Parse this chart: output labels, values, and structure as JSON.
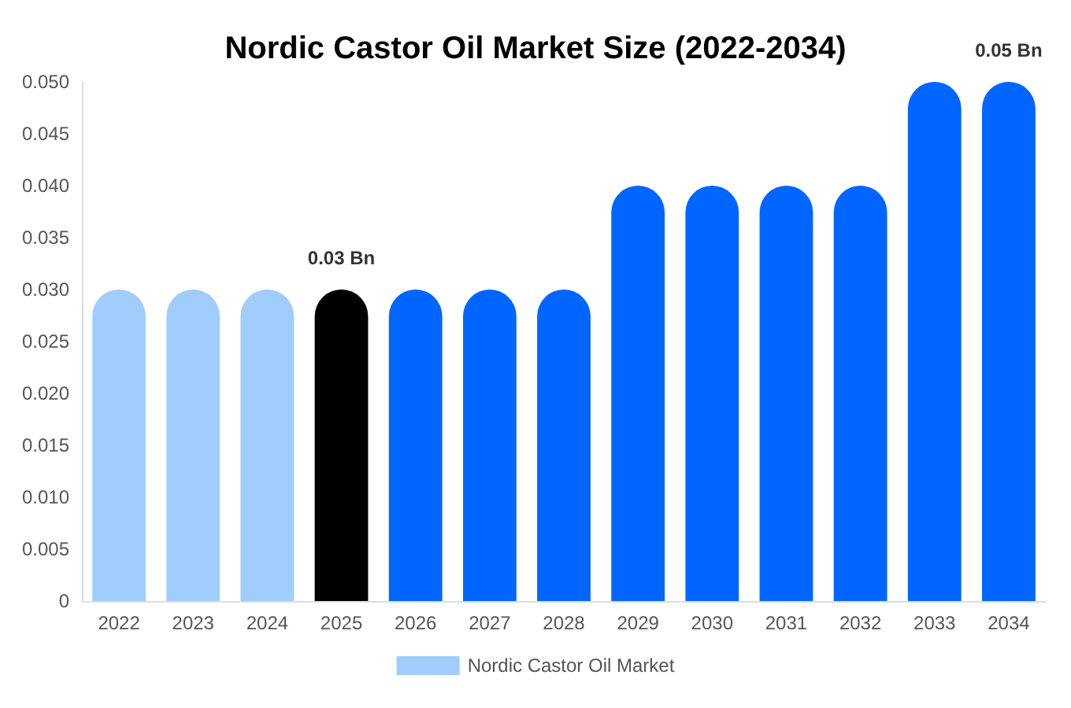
{
  "chart_data": {
    "type": "bar",
    "title": "Nordic Castor Oil Market Size (2022-2034)",
    "categories": [
      "2022",
      "2023",
      "2024",
      "2025",
      "2026",
      "2027",
      "2028",
      "2029",
      "2030",
      "2031",
      "2032",
      "2033",
      "2034"
    ],
    "series": [
      {
        "name": "Nordic Castor Oil Market",
        "color": "#a0cdfc",
        "values": [
          0.03,
          0.03,
          0.03,
          0.03,
          0.03,
          0.03,
          0.03,
          0.04,
          0.04,
          0.04,
          0.04,
          0.05,
          0.05
        ],
        "colors": [
          "#a0cdfc",
          "#a0cdfc",
          "#a0cdfc",
          "#000000",
          "#0066ff",
          "#0066ff",
          "#0066ff",
          "#0066ff",
          "#0066ff",
          "#0066ff",
          "#0066ff",
          "#0066ff",
          "#0066ff"
        ],
        "value_labels": [
          null,
          null,
          null,
          "0.03 Bn",
          null,
          null,
          null,
          null,
          null,
          null,
          null,
          null,
          "0.05 Bn"
        ]
      }
    ],
    "ylim": [
      0,
      0.05
    ],
    "yticks": [
      0,
      0.005,
      {
        "value": 0.01,
        "label": "0.010"
      },
      0.015,
      {
        "value": 0.02,
        "label": "0.020"
      },
      0.025,
      {
        "value": 0.03,
        "label": "0.030"
      },
      0.035,
      {
        "value": 0.04,
        "label": "0.040"
      },
      0.045,
      {
        "value": 0.05,
        "label": "0.050"
      }
    ],
    "grid": false,
    "legend": "bottom"
  }
}
